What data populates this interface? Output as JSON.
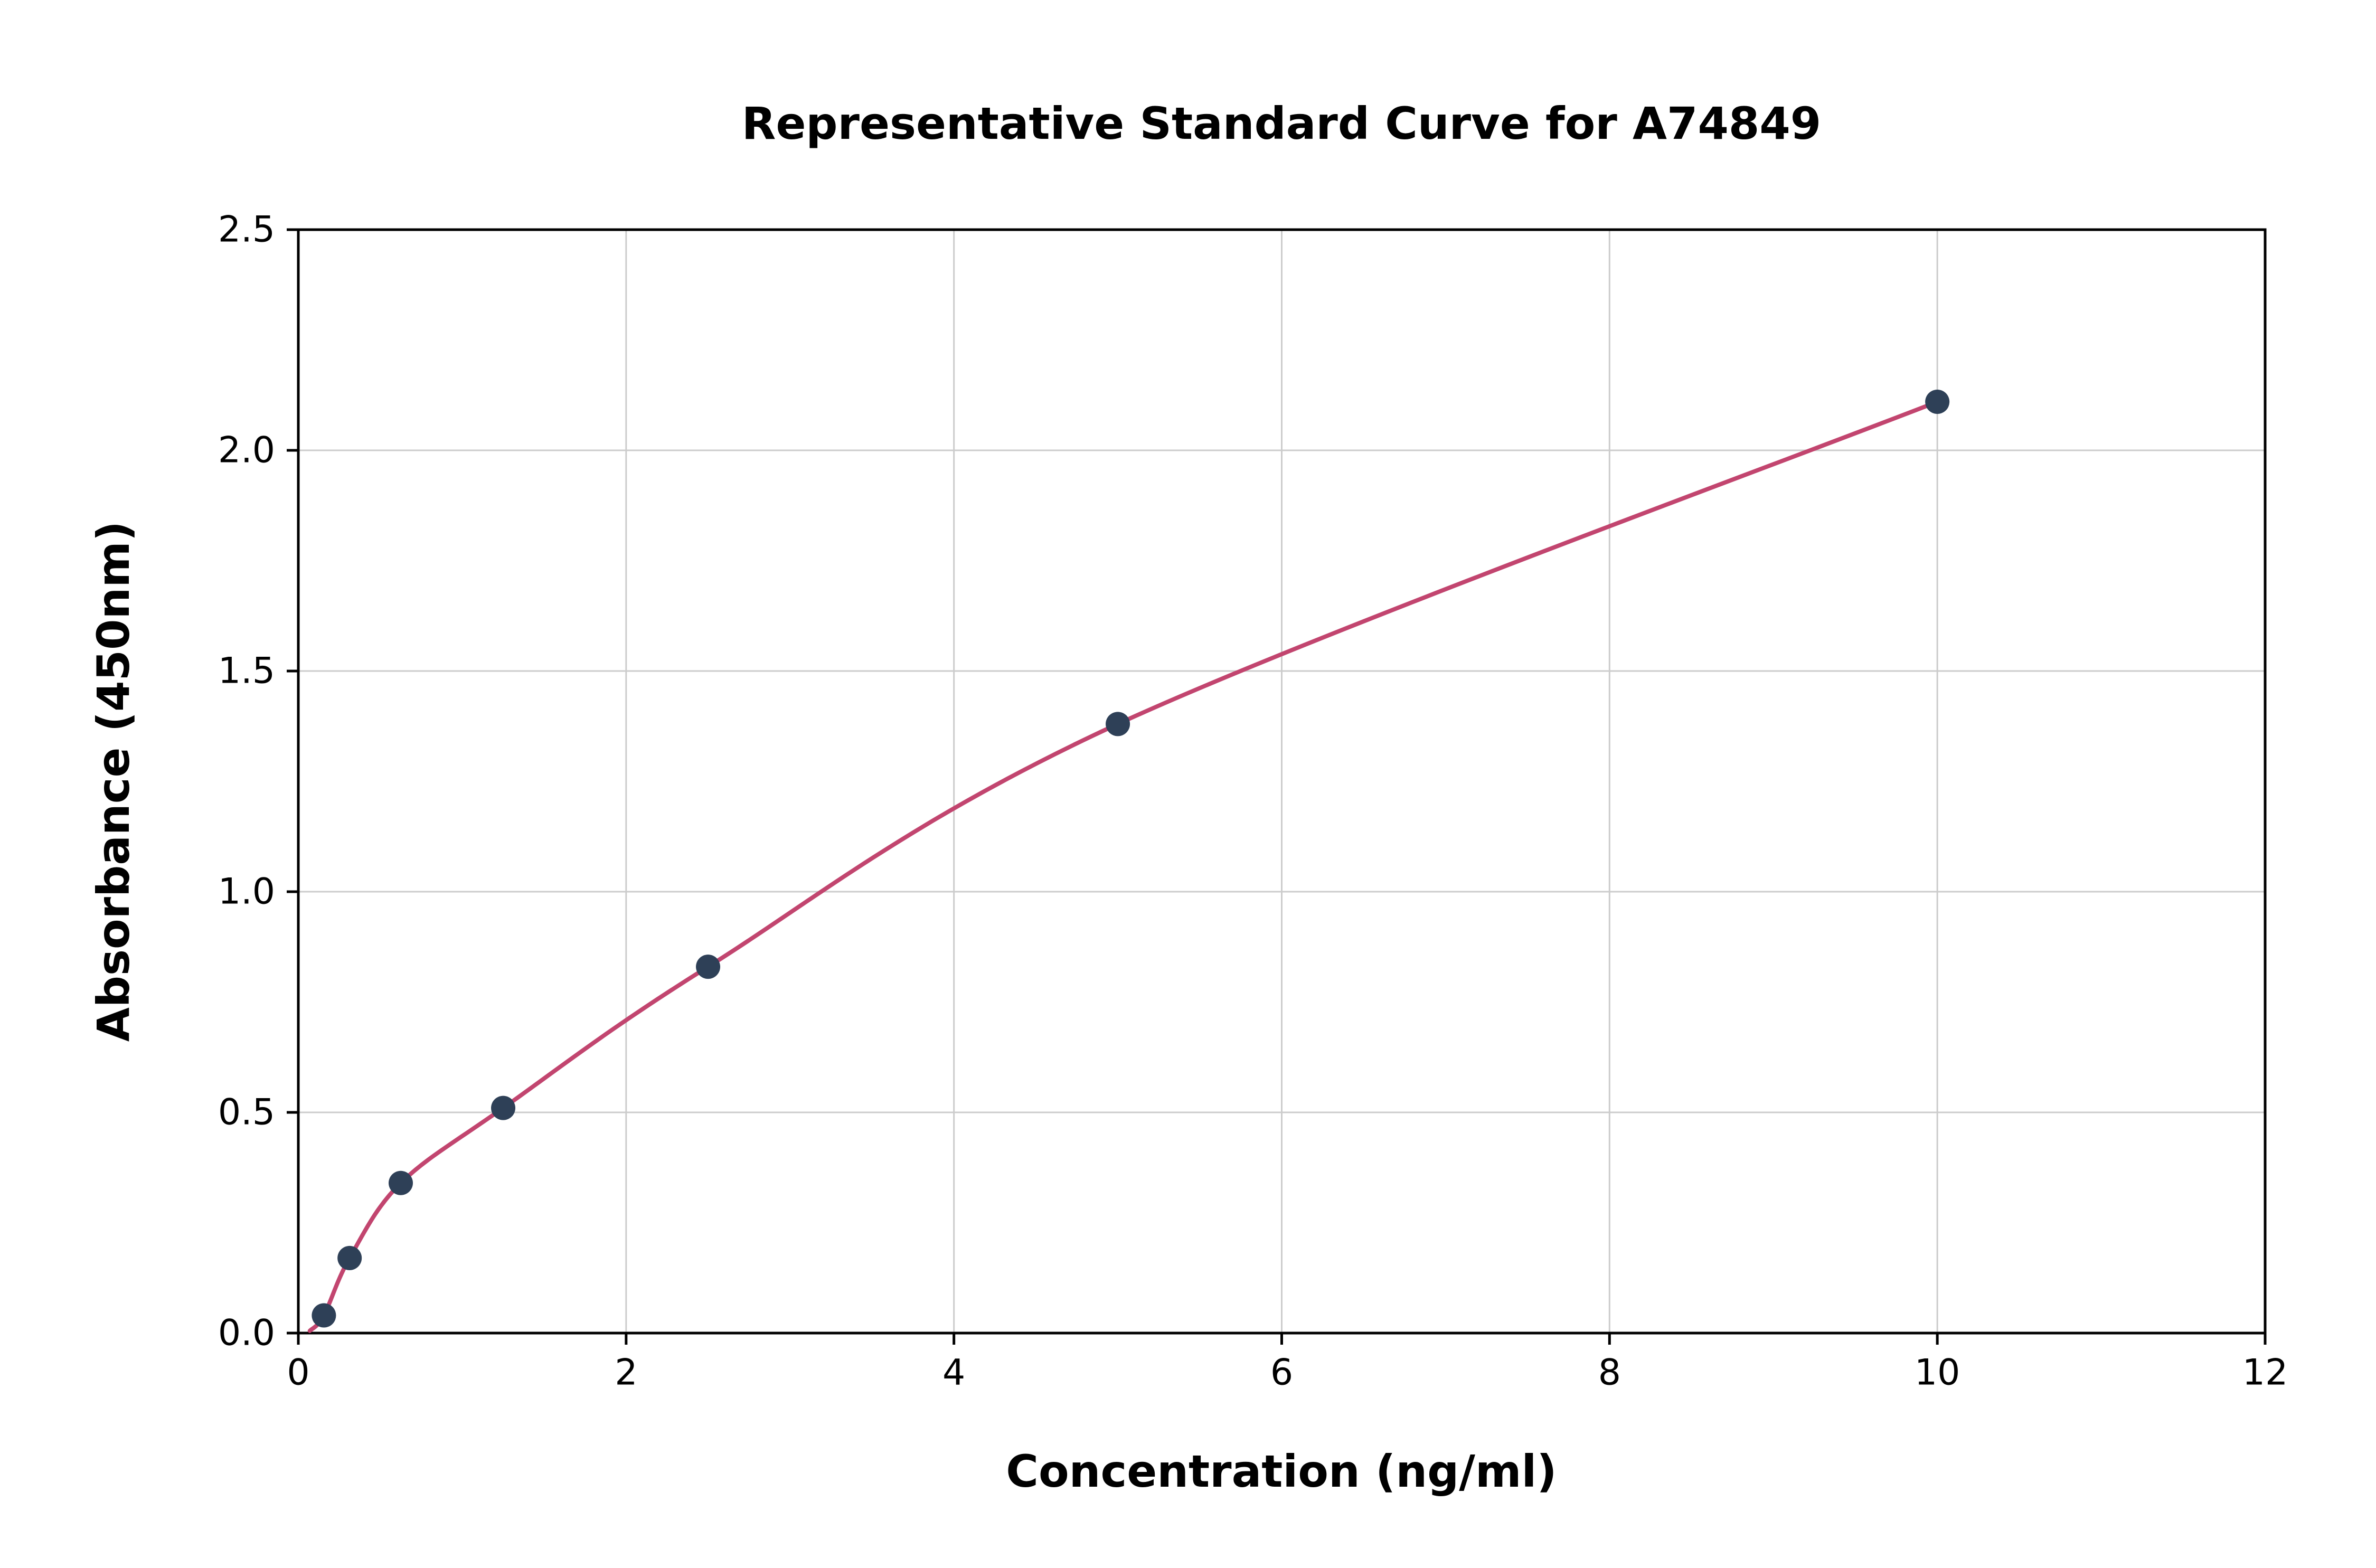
{
  "chart_data": {
    "type": "scatter",
    "title": "Representative Standard Curve for A74849",
    "xlabel": "Concentration (ng/ml)",
    "ylabel": "Absorbance (450nm)",
    "xlim": [
      0,
      12
    ],
    "ylim": [
      0,
      2.5
    ],
    "xticks": [
      0,
      2,
      4,
      6,
      8,
      10,
      12
    ],
    "xtick_labels": [
      "0",
      "2",
      "4",
      "6",
      "8",
      "10",
      "12"
    ],
    "yticks": [
      0.0,
      0.5,
      1.0,
      1.5,
      2.0,
      2.5
    ],
    "ytick_labels": [
      "0.0",
      "0.5",
      "1.0",
      "1.5",
      "2.0",
      "2.5"
    ],
    "grid": true,
    "legend": "none",
    "points": {
      "x": [
        0.156,
        0.313,
        0.625,
        1.25,
        2.5,
        5,
        10
      ],
      "y": [
        0.04,
        0.17,
        0.34,
        0.51,
        0.83,
        1.38,
        2.11
      ]
    },
    "curve_start": {
      "x": 0.07,
      "y": 0.005
    },
    "colors": {
      "curve": "#c2456f",
      "marker": "#2e4057",
      "grid": "#cccccc",
      "axis": "#000000",
      "background": "#ffffff"
    }
  }
}
